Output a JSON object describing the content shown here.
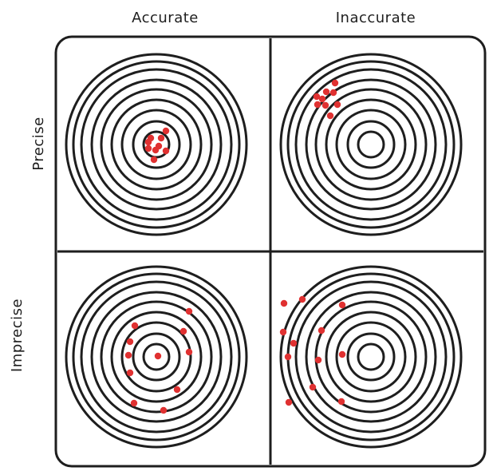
{
  "labels": {
    "col_accurate": "Accurate",
    "col_inaccurate": "Inaccurate",
    "row_precise": "Precise",
    "row_imprecise": "Imprecise"
  },
  "colors": {
    "ink": "#1e1e1e",
    "dot": "#e03131"
  },
  "quadrants": [
    {
      "id": "accurate-precise",
      "dots": 9
    },
    {
      "id": "inaccurate-precise",
      "dots": 9
    },
    {
      "id": "accurate-imprecise",
      "dots": 11
    },
    {
      "id": "inaccurate-imprecise",
      "dots": 12
    }
  ]
}
